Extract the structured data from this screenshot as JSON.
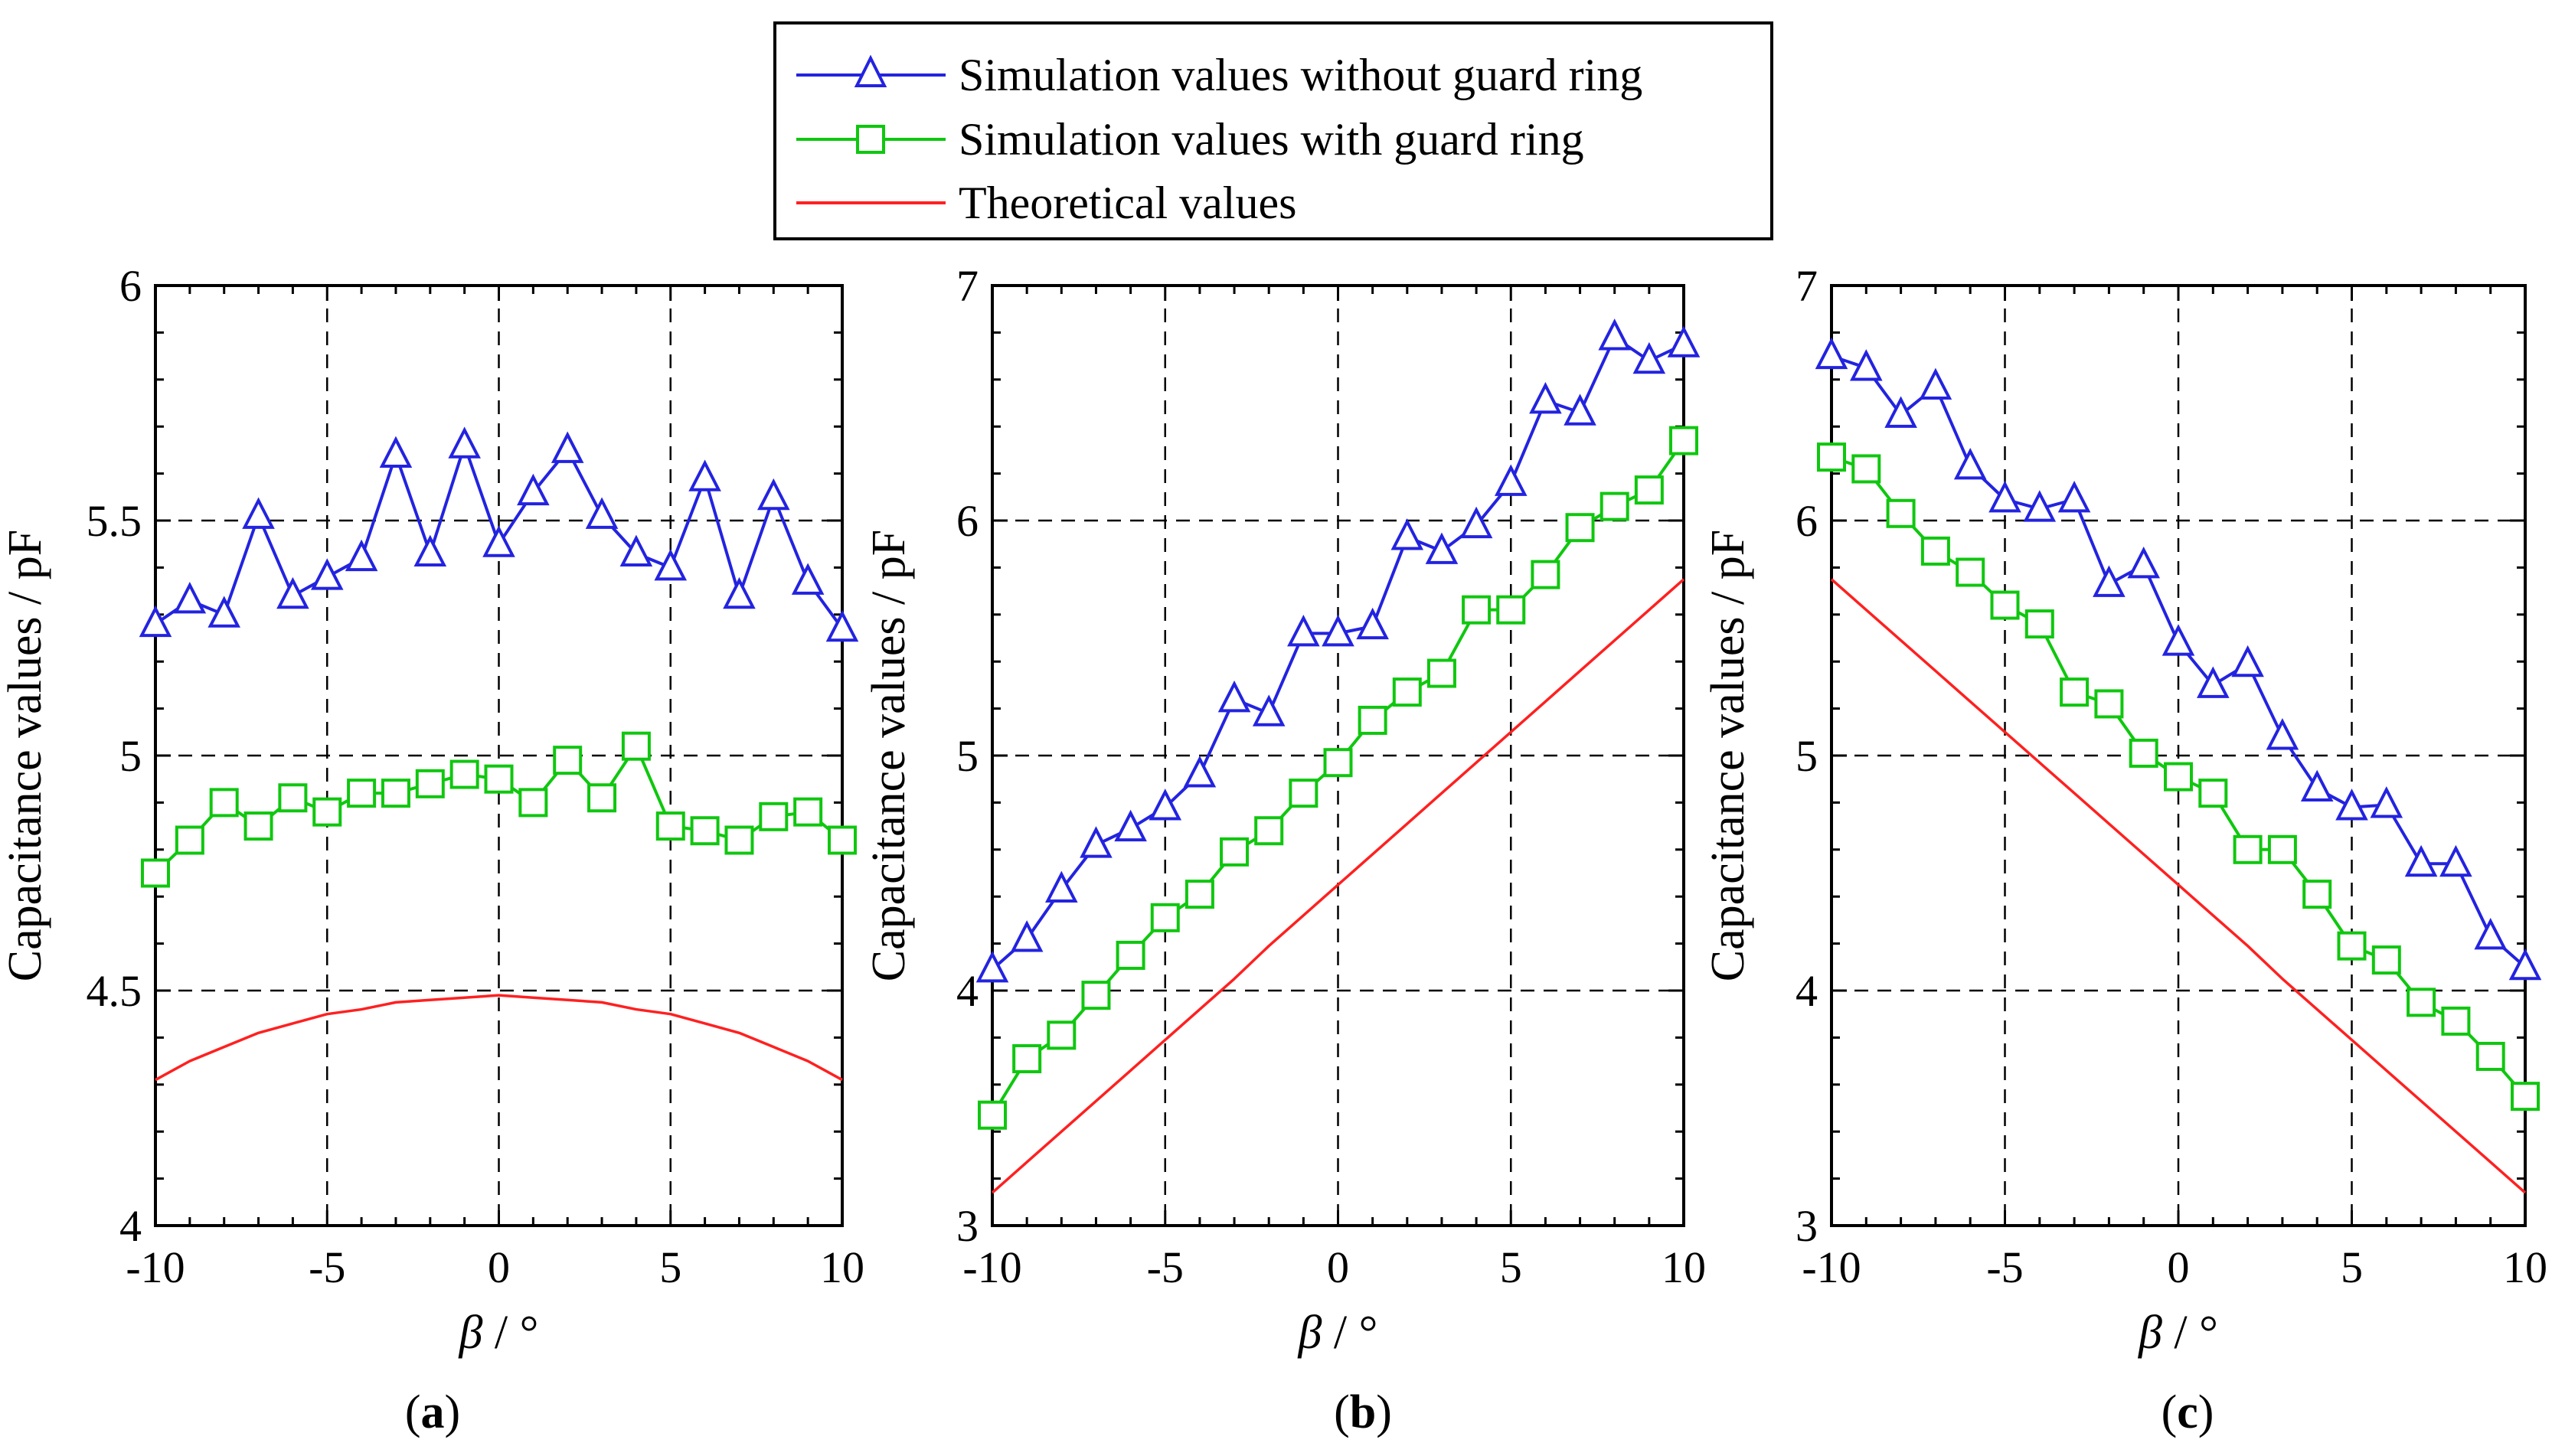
{
  "legend": {
    "entries": [
      {
        "label": "Simulation values without guard ring",
        "color": "#2323e0",
        "marker": "triangle"
      },
      {
        "label": "Simulation values with guard ring",
        "color": "#0fc70f",
        "marker": "square"
      },
      {
        "label": "Theoretical values",
        "color": "#ff2020",
        "marker": "none"
      }
    ]
  },
  "chart_data": [
    {
      "type": "line",
      "panel_label": {
        "open": "(",
        "letter": "a",
        "close": ")"
      },
      "xlabel": "β / °",
      "ylabel": "Capacitance values / pF",
      "xlim": [
        -10,
        10
      ],
      "ylim": [
        4,
        6
      ],
      "xticks": [
        -10,
        -5,
        0,
        5,
        10
      ],
      "yticks": [
        4,
        4.5,
        5,
        5.5,
        6
      ],
      "ytick_labels": [
        "4",
        "4.5",
        "5",
        "5.5",
        "6"
      ],
      "grid": true,
      "x": [
        -10,
        -9,
        -8,
        -7,
        -6,
        -5,
        -4,
        -3,
        -2,
        -1,
        0,
        1,
        2,
        3,
        4,
        5,
        6,
        7,
        8,
        9,
        10
      ],
      "series": [
        {
          "name": "Simulation values without guard ring",
          "values": [
            5.28,
            5.33,
            5.3,
            5.51,
            5.34,
            5.38,
            5.42,
            5.64,
            5.43,
            5.66,
            5.45,
            5.56,
            5.65,
            5.51,
            5.43,
            5.4,
            5.59,
            5.34,
            5.55,
            5.37,
            5.27
          ]
        },
        {
          "name": "Simulation values with guard ring",
          "values": [
            4.75,
            4.82,
            4.9,
            4.85,
            4.91,
            4.88,
            4.92,
            4.92,
            4.94,
            4.96,
            4.95,
            4.9,
            4.99,
            4.91,
            5.02,
            4.85,
            4.84,
            4.82,
            4.87,
            4.88,
            4.82
          ]
        },
        {
          "name": "Theoretical values",
          "values": [
            4.31,
            4.35,
            4.38,
            4.41,
            4.43,
            4.45,
            4.46,
            4.475,
            4.48,
            4.485,
            4.49,
            4.485,
            4.48,
            4.475,
            4.46,
            4.45,
            4.43,
            4.41,
            4.38,
            4.35,
            4.31
          ]
        }
      ]
    },
    {
      "type": "line",
      "panel_label": {
        "open": "(",
        "letter": "b",
        "close": ")"
      },
      "xlabel": "β / °",
      "ylabel": "Capacitance values / pF",
      "xlim": [
        -10,
        10
      ],
      "ylim": [
        3,
        7
      ],
      "xticks": [
        -10,
        -5,
        0,
        5,
        10
      ],
      "yticks": [
        3,
        4,
        5,
        6,
        7
      ],
      "ytick_labels": [
        "3",
        "4",
        "5",
        "6",
        "7"
      ],
      "grid": true,
      "x": [
        -10,
        -9,
        -8,
        -7,
        -6,
        -5,
        -4,
        -3,
        -2,
        -1,
        0,
        1,
        2,
        3,
        4,
        5,
        6,
        7,
        8,
        9,
        10
      ],
      "series": [
        {
          "name": "Simulation values without guard ring",
          "values": [
            4.09,
            4.22,
            4.43,
            4.62,
            4.69,
            4.78,
            4.92,
            5.24,
            5.18,
            5.52,
            5.52,
            5.55,
            5.93,
            5.87,
            5.98,
            6.16,
            6.51,
            6.46,
            6.78,
            6.68,
            6.75
          ]
        },
        {
          "name": "Simulation values with guard ring",
          "values": [
            3.47,
            3.71,
            3.81,
            3.98,
            4.15,
            4.31,
            4.41,
            4.59,
            4.68,
            4.84,
            4.97,
            5.15,
            5.27,
            5.35,
            5.62,
            5.62,
            5.77,
            5.97,
            6.06,
            6.13,
            6.34
          ]
        },
        {
          "name": "Theoretical values",
          "values": [
            3.14,
            3.27,
            3.4,
            3.53,
            3.66,
            3.79,
            3.92,
            4.05,
            4.19,
            4.32,
            4.45,
            4.58,
            4.71,
            4.84,
            4.97,
            5.1,
            5.23,
            5.36,
            5.49,
            5.62,
            5.75
          ]
        }
      ]
    },
    {
      "type": "line",
      "panel_label": {
        "open": "(",
        "letter": "c",
        "close": ")"
      },
      "xlabel": "β / °",
      "ylabel": "Capacitance values / pF",
      "xlim": [
        -10,
        10
      ],
      "ylim": [
        3,
        7
      ],
      "xticks": [
        -10,
        -5,
        0,
        5,
        10
      ],
      "yticks": [
        3,
        4,
        5,
        6,
        7
      ],
      "ytick_labels": [
        "3",
        "4",
        "5",
        "6",
        "7"
      ],
      "grid": true,
      "x": [
        -10,
        -9,
        -8,
        -7,
        -6,
        -5,
        -4,
        -3,
        -2,
        -1,
        0,
        1,
        2,
        3,
        4,
        5,
        6,
        7,
        8,
        9,
        10
      ],
      "series": [
        {
          "name": "Simulation values without guard ring",
          "values": [
            6.7,
            6.65,
            6.45,
            6.57,
            6.23,
            6.09,
            6.05,
            6.09,
            5.73,
            5.81,
            5.48,
            5.3,
            5.39,
            5.08,
            4.86,
            4.78,
            4.79,
            4.54,
            4.54,
            4.23,
            4.1
          ]
        },
        {
          "name": "Simulation values with guard ring",
          "values": [
            6.27,
            6.22,
            6.03,
            5.87,
            5.78,
            5.64,
            5.56,
            5.27,
            5.22,
            5.01,
            4.91,
            4.84,
            4.6,
            4.6,
            4.41,
            4.19,
            4.13,
            3.95,
            3.87,
            3.72,
            3.55
          ]
        },
        {
          "name": "Theoretical values",
          "values": [
            5.75,
            5.62,
            5.49,
            5.36,
            5.23,
            5.1,
            4.97,
            4.84,
            4.71,
            4.58,
            4.45,
            4.32,
            4.19,
            4.05,
            3.92,
            3.79,
            3.66,
            3.53,
            3.4,
            3.27,
            3.14
          ]
        }
      ]
    }
  ]
}
